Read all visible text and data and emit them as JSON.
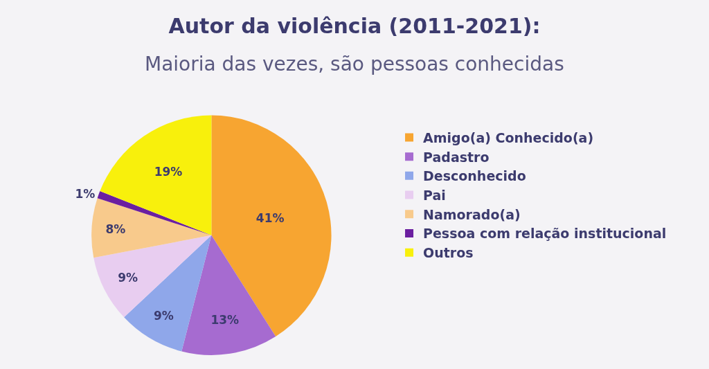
{
  "chart_data": {
    "type": "pie",
    "title": "Autor da violência (2011-2021):",
    "subtitle": "Maioria das vezes, são pessoas conhecidas",
    "categories": [
      "Amigo(a) Conhecido(a)",
      "Padastro",
      "Desconhecido",
      "Pai",
      "Namorado(a)",
      "Pessoa com relação institucional",
      "Outros"
    ],
    "values": [
      41,
      13,
      9,
      9,
      8,
      1,
      19
    ],
    "value_labels": [
      "41%",
      "13%",
      "9%",
      "9%",
      "8%",
      "1%",
      "19%"
    ],
    "colors": [
      "#f7a531",
      "#a66bd0",
      "#8fa7ea",
      "#e8cdf0",
      "#f8ca8c",
      "#6b1fa0",
      "#f8f00c"
    ],
    "legend": "right"
  }
}
